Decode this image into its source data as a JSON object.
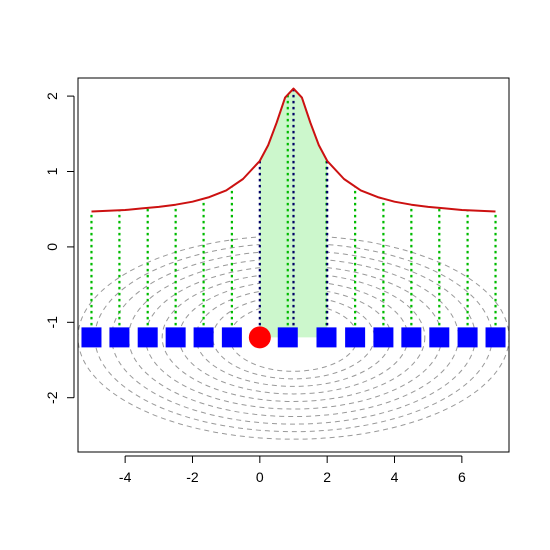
{
  "chart_data": {
    "type": "line",
    "title": "",
    "xlabel": "",
    "ylabel": "",
    "xlim": [
      -5.4,
      7.4
    ],
    "ylim": [
      -2.72,
      2.24
    ],
    "x_ticks": [
      -4,
      -2,
      0,
      2,
      4,
      6
    ],
    "x_tick_labels": [
      "-4",
      "-2",
      "0",
      "2",
      "4",
      "6"
    ],
    "y_ticks": [
      -2,
      -1,
      0,
      1,
      2
    ],
    "y_tick_labels": [
      "-2",
      "-1",
      "0",
      "1",
      "2"
    ],
    "grid": false,
    "curve": {
      "color": "#cc1111",
      "x": [
        -5,
        -4.5,
        -4,
        -3.5,
        -3,
        -2.5,
        -2,
        -1.5,
        -1,
        -0.5,
        0,
        0.25,
        0.5,
        0.75,
        1,
        1.25,
        1.5,
        1.75,
        2,
        2.5,
        3,
        3.5,
        4,
        4.5,
        5,
        5.5,
        6,
        6.5,
        7
      ],
      "y": [
        0.47,
        0.48,
        0.49,
        0.51,
        0.53,
        0.56,
        0.6,
        0.66,
        0.75,
        0.9,
        1.14,
        1.35,
        1.65,
        1.98,
        2.1,
        1.98,
        1.65,
        1.35,
        1.14,
        0.9,
        0.75,
        0.66,
        0.6,
        0.56,
        0.53,
        0.51,
        0.49,
        0.48,
        0.47
      ]
    },
    "shaded_region": {
      "x_from": 0,
      "x_to": 2,
      "color": "#ccf7cc"
    },
    "sample_points": {
      "y": -1.2,
      "x": [
        -5,
        -4.17,
        -3.33,
        -2.5,
        -1.67,
        -0.83,
        0.83,
        1.98,
        2.83,
        3.67,
        4.5,
        5.33,
        6.17,
        7
      ],
      "color": "#0000ff",
      "line_color": "#00bb00"
    },
    "center_point": {
      "x": 0,
      "y": -1.2,
      "color": "#ff0000"
    },
    "inner_lines": {
      "x": [
        0,
        1,
        2
      ],
      "color": "#000066"
    },
    "contours": {
      "center": [
        1,
        -1.2
      ],
      "radius_x": [
        1.9,
        2.4,
        2.9,
        3.4,
        3.9,
        4.4,
        4.9,
        5.4,
        5.9,
        6.4
      ],
      "radius_y": [
        0.45,
        0.55,
        0.65,
        0.75,
        0.85,
        0.95,
        1.05,
        1.15,
        1.25,
        1.35
      ],
      "color": "#999999"
    }
  }
}
